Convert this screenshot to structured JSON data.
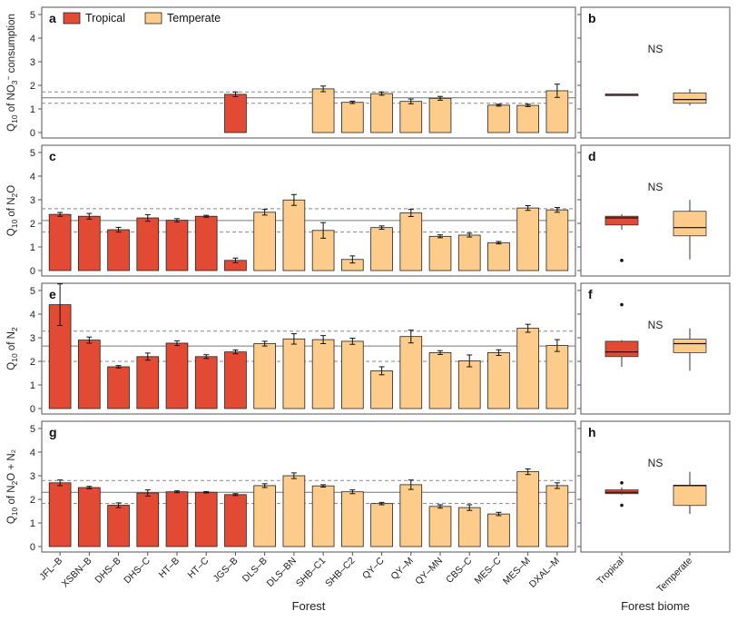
{
  "colors": {
    "tropical": "#e34a33",
    "temperate": "#fdcc8a",
    "bar_stroke": "#222222",
    "frame": "#555555"
  },
  "legend": {
    "tropical": "Tropical",
    "temperate": "Temperate"
  },
  "x_axis_title": "Forest",
  "box_axis_title": "Forest biome",
  "box_categories": [
    "Tropical",
    "Temperate"
  ],
  "chart_data": [
    {
      "type": "bar",
      "panel": "a",
      "ylabel_parts": [
        "Q",
        "10",
        " of NO",
        "3",
        "−",
        " consumption"
      ],
      "ylim": [
        0,
        5
      ],
      "yticks": [
        0,
        1,
        2,
        3,
        4,
        5
      ],
      "categories": [
        "JFL–B",
        "XSBN–B",
        "DHS–B",
        "DHS–C",
        "HT–B",
        "HT–C",
        "JGS–B",
        "DLS–B",
        "DLS–BN",
        "SHB–C1",
        "SHB–C2",
        "QY–C",
        "QY–M",
        "QY–MN",
        "CBS–C",
        "MES–C",
        "MES–M",
        "DXAL–M"
      ],
      "biome": [
        "Tropical",
        "Tropical",
        "Tropical",
        "Tropical",
        "Tropical",
        "Tropical",
        "Tropical",
        "Temperate",
        "Temperate",
        "Temperate",
        "Temperate",
        "Temperate",
        "Temperate",
        "Temperate",
        "Temperate",
        "Temperate",
        "Temperate",
        "Temperate"
      ],
      "values": [
        null,
        null,
        null,
        null,
        null,
        null,
        1.62,
        null,
        null,
        1.85,
        1.28,
        1.65,
        1.32,
        1.45,
        null,
        1.16,
        1.15,
        1.77
      ],
      "errors": [
        null,
        null,
        null,
        null,
        null,
        null,
        0.1,
        null,
        null,
        0.12,
        0.05,
        0.07,
        0.1,
        0.08,
        null,
        0.04,
        0.05,
        0.28
      ],
      "mean_line": 1.47,
      "ci_lines": [
        1.24,
        1.72
      ],
      "box_panel": "b",
      "box_note": "NS",
      "boxes": [
        {
          "name": "Tropical",
          "min": 1.62,
          "q1": 1.62,
          "median": 1.62,
          "q3": 1.62,
          "max": 1.62,
          "outliers": []
        },
        {
          "name": "Temperate",
          "min": 1.15,
          "q1": 1.24,
          "median": 1.4,
          "q3": 1.68,
          "max": 1.85,
          "outliers": []
        }
      ]
    },
    {
      "type": "bar",
      "panel": "c",
      "ylabel_parts": [
        "Q",
        "10",
        " of  N",
        "2",
        "",
        "O"
      ],
      "ylim": [
        0,
        5
      ],
      "yticks": [
        0,
        1,
        2,
        3,
        4,
        5
      ],
      "categories": [
        "JFL–B",
        "XSBN–B",
        "DHS–B",
        "DHS–C",
        "HT–B",
        "HT–C",
        "JGS–B",
        "DLS–B",
        "DLS–BN",
        "SHB–C1",
        "SHB–C2",
        "QY–C",
        "QY–M",
        "QY–MN",
        "CBS–C",
        "MES–C",
        "MES–M",
        "DXAL–M"
      ],
      "biome": [
        "Tropical",
        "Tropical",
        "Tropical",
        "Tropical",
        "Tropical",
        "Tropical",
        "Tropical",
        "Temperate",
        "Temperate",
        "Temperate",
        "Temperate",
        "Temperate",
        "Temperate",
        "Temperate",
        "Temperate",
        "Temperate",
        "Temperate",
        "Temperate"
      ],
      "values": [
        2.38,
        2.3,
        1.73,
        2.23,
        2.13,
        2.3,
        0.43,
        2.47,
        2.99,
        1.7,
        0.47,
        1.82,
        2.44,
        1.45,
        1.5,
        1.18,
        2.65,
        2.57
      ],
      "errors": [
        0.08,
        0.12,
        0.1,
        0.14,
        0.07,
        0.04,
        0.1,
        0.12,
        0.23,
        0.33,
        0.15,
        0.07,
        0.15,
        0.06,
        0.08,
        0.05,
        0.1,
        0.1
      ],
      "mean_line": 2.12,
      "ci_lines": [
        1.63,
        2.62
      ],
      "box_panel": "d",
      "box_note": "NS",
      "boxes": [
        {
          "name": "Tropical",
          "min": 1.73,
          "q1": 1.93,
          "median": 2.23,
          "q3": 2.3,
          "max": 2.38,
          "outliers": [
            0.43
          ]
        },
        {
          "name": "Temperate",
          "min": 0.47,
          "q1": 1.47,
          "median": 1.82,
          "q3": 2.51,
          "max": 2.99,
          "outliers": []
        }
      ]
    },
    {
      "type": "bar",
      "panel": "e",
      "ylabel_parts": [
        "Q",
        "10",
        " of  N",
        "2",
        "",
        ""
      ],
      "ylim": [
        0,
        5
      ],
      "yticks": [
        0,
        1,
        2,
        3,
        4,
        5
      ],
      "categories": [
        "JFL–B",
        "XSBN–B",
        "DHS–B",
        "DHS–C",
        "HT–B",
        "HT–C",
        "JGS–B",
        "DLS–B",
        "DLS–BN",
        "SHB–C1",
        "SHB–C2",
        "QY–C",
        "QY–M",
        "QY–MN",
        "CBS–C",
        "MES–C",
        "MES–M",
        "DXAL–M"
      ],
      "biome": [
        "Tropical",
        "Tropical",
        "Tropical",
        "Tropical",
        "Tropical",
        "Tropical",
        "Tropical",
        "Temperate",
        "Temperate",
        "Temperate",
        "Temperate",
        "Temperate",
        "Temperate",
        "Temperate",
        "Temperate",
        "Temperate",
        "Temperate",
        "Temperate"
      ],
      "values": [
        4.4,
        2.9,
        1.77,
        2.2,
        2.77,
        2.2,
        2.4,
        2.75,
        2.95,
        2.92,
        2.85,
        1.6,
        3.05,
        2.37,
        2.02,
        2.37,
        3.4,
        2.67
      ],
      "errors": [
        0.88,
        0.13,
        0.05,
        0.15,
        0.1,
        0.08,
        0.08,
        0.1,
        0.22,
        0.17,
        0.13,
        0.17,
        0.27,
        0.08,
        0.25,
        0.12,
        0.17,
        0.25
      ],
      "mean_line": 2.65,
      "ci_lines": [
        2.0,
        3.28
      ],
      "box_panel": "f",
      "box_note": "NS",
      "boxes": [
        {
          "name": "Tropical",
          "min": 1.77,
          "q1": 2.2,
          "median": 2.4,
          "q3": 2.85,
          "max": 2.9,
          "outliers": [
            4.4
          ]
        },
        {
          "name": "Temperate",
          "min": 1.6,
          "q1": 2.37,
          "median": 2.75,
          "q3": 2.94,
          "max": 3.4,
          "outliers": []
        }
      ]
    },
    {
      "type": "bar",
      "panel": "g",
      "ylabel_parts": [
        "Q",
        "10",
        " of N",
        "2",
        "",
        "O + N₂"
      ],
      "ylim": [
        0,
        5
      ],
      "yticks": [
        0,
        1,
        2,
        3,
        4,
        5
      ],
      "categories": [
        "JFL–B",
        "XSBN–B",
        "DHS–B",
        "DHS–C",
        "HT–B",
        "HT–C",
        "JGS–B",
        "DLS–B",
        "DLS–BN",
        "SHB–C1",
        "SHB–C2",
        "QY–C",
        "QY–M",
        "QY–MN",
        "CBS–C",
        "MES–C",
        "MES–M",
        "DXAL–M"
      ],
      "biome": [
        "Tropical",
        "Tropical",
        "Tropical",
        "Tropical",
        "Tropical",
        "Tropical",
        "Tropical",
        "Temperate",
        "Temperate",
        "Temperate",
        "Temperate",
        "Temperate",
        "Temperate",
        "Temperate",
        "Temperate",
        "Temperate",
        "Temperate",
        "Temperate"
      ],
      "values": [
        2.7,
        2.5,
        1.75,
        2.27,
        2.32,
        2.3,
        2.2,
        2.58,
        3.0,
        2.57,
        2.32,
        1.82,
        2.62,
        1.7,
        1.65,
        1.38,
        3.17,
        2.58
      ],
      "errors": [
        0.12,
        0.05,
        0.1,
        0.13,
        0.04,
        0.03,
        0.04,
        0.08,
        0.12,
        0.05,
        0.08,
        0.05,
        0.2,
        0.07,
        0.12,
        0.07,
        0.12,
        0.12
      ],
      "mean_line": 2.3,
      "ci_lines": [
        1.82,
        2.8
      ],
      "box_panel": "h",
      "box_note": "NS",
      "boxes": [
        {
          "name": "Tropical",
          "min": 2.2,
          "q1": 2.24,
          "median": 2.3,
          "q3": 2.4,
          "max": 2.5,
          "outliers": [
            2.7,
            1.75
          ]
        },
        {
          "name": "Temperate",
          "min": 1.38,
          "q1": 1.74,
          "median": 2.58,
          "q3": 2.6,
          "max": 3.17,
          "outliers": []
        }
      ]
    }
  ]
}
